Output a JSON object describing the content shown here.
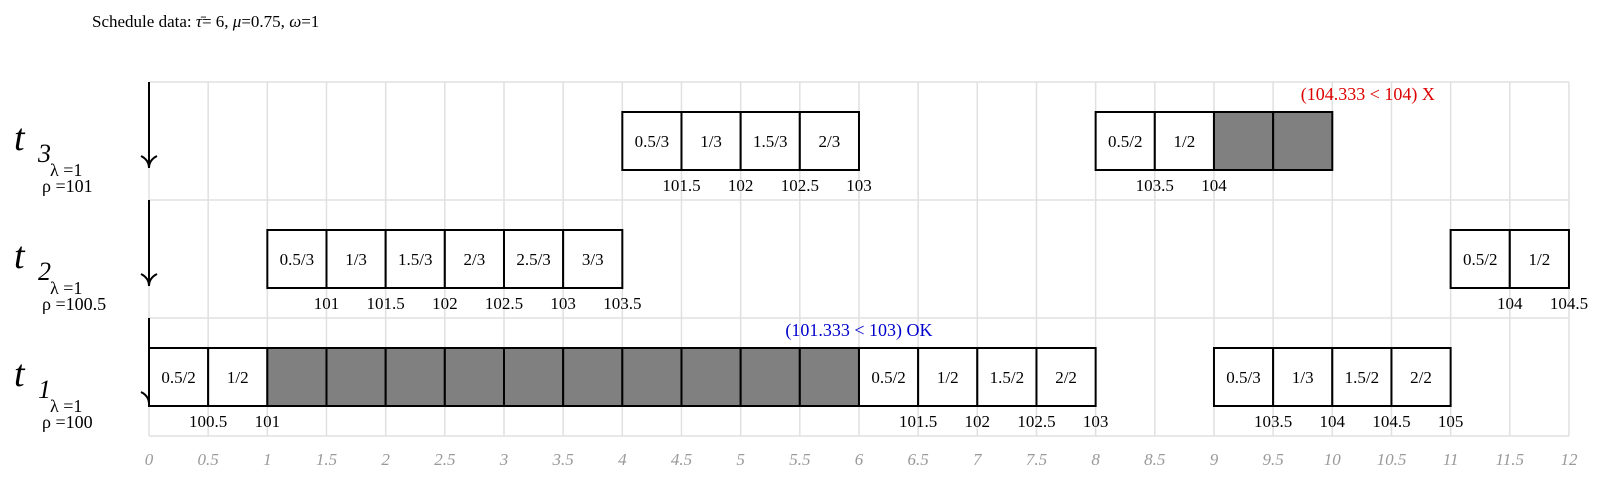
{
  "header": {
    "prefix": "Schedule data:",
    "tau_symbol": "τ̄",
    "tau_value": "= 6,",
    "mu_symbol": "μ",
    "mu_value": "=0.75,",
    "omega_symbol": "ω",
    "omega_value": "=1"
  },
  "colors": {
    "grid": "#e0e0e0",
    "filled": "#808080",
    "ok": "#0000cc",
    "fail": "#dd0000",
    "axis_label": "#999999"
  },
  "x_axis": {
    "ticks": [
      "0",
      "0.5",
      "1",
      "1.5",
      "2",
      "2.5",
      "3",
      "3.5",
      "4",
      "4.5",
      "5",
      "5.5",
      "6",
      "6.5",
      "7",
      "7.5",
      "8",
      "8.5",
      "9",
      "9.5",
      "10",
      "10.5",
      "11",
      "11.5",
      "12"
    ]
  },
  "rows": [
    {
      "task": "t",
      "sub": "3",
      "lambda": "λ =1",
      "rho": "ρ =101",
      "segments": [
        {
          "start": 4,
          "cells": [
            "0.5/3",
            "1/3",
            "1.5/3",
            "2/3"
          ]
        },
        {
          "start": 8,
          "cells": [
            "0.5/2",
            "1/2",
            "",
            ""
          ],
          "filled_from": 2
        }
      ],
      "labels": [
        {
          "x": 4.5,
          "text": "101.5"
        },
        {
          "x": 5,
          "text": "102"
        },
        {
          "x": 5.5,
          "text": "102.5"
        },
        {
          "x": 6,
          "text": "103"
        },
        {
          "x": 8.5,
          "text": "103.5"
        },
        {
          "x": 9,
          "text": "104"
        }
      ],
      "annotation": {
        "x": 10.3,
        "text": "(104.333 < 104) X",
        "status": "fail"
      }
    },
    {
      "task": "t",
      "sub": "2",
      "lambda": "λ =1",
      "rho": "ρ =100.5",
      "segments": [
        {
          "start": 1,
          "cells": [
            "0.5/3",
            "1/3",
            "1.5/3",
            "2/3",
            "2.5/3",
            "3/3"
          ]
        },
        {
          "start": 11,
          "cells": [
            "0.5/2",
            "1/2"
          ]
        }
      ],
      "labels": [
        {
          "x": 1.5,
          "text": "101"
        },
        {
          "x": 2,
          "text": "101.5"
        },
        {
          "x": 2.5,
          "text": "102"
        },
        {
          "x": 3,
          "text": "102.5"
        },
        {
          "x": 3.5,
          "text": "103"
        },
        {
          "x": 4,
          "text": "103.5"
        },
        {
          "x": 11.5,
          "text": "104"
        },
        {
          "x": 12,
          "text": "104.5"
        }
      ],
      "annotation": null
    },
    {
      "task": "t",
      "sub": "1",
      "lambda": "λ =1",
      "rho": "ρ =100",
      "segments": [
        {
          "start": 0,
          "cells": [
            "0.5/2",
            "1/2",
            "",
            "",
            "",
            "",
            "",
            "",
            "",
            "",
            "",
            ""
          ],
          "filled_from": 2
        },
        {
          "start": 6,
          "cells": [
            "0.5/2",
            "1/2",
            "1.5/2",
            "2/2"
          ]
        },
        {
          "start": 9,
          "cells": [
            "0.5/3",
            "1/3",
            "1.5/2",
            "2/2"
          ]
        }
      ],
      "labels": [
        {
          "x": 0.5,
          "text": "100.5"
        },
        {
          "x": 1,
          "text": "101"
        },
        {
          "x": 6.5,
          "text": "101.5"
        },
        {
          "x": 7,
          "text": "102"
        },
        {
          "x": 7.5,
          "text": "102.5"
        },
        {
          "x": 8,
          "text": "103"
        },
        {
          "x": 9.5,
          "text": "103.5"
        },
        {
          "x": 10,
          "text": "104"
        },
        {
          "x": 10.5,
          "text": "104.5"
        },
        {
          "x": 11,
          "text": "105"
        }
      ],
      "annotation": {
        "x": 6,
        "text": "(101.333 < 103) OK",
        "status": "ok"
      }
    }
  ]
}
